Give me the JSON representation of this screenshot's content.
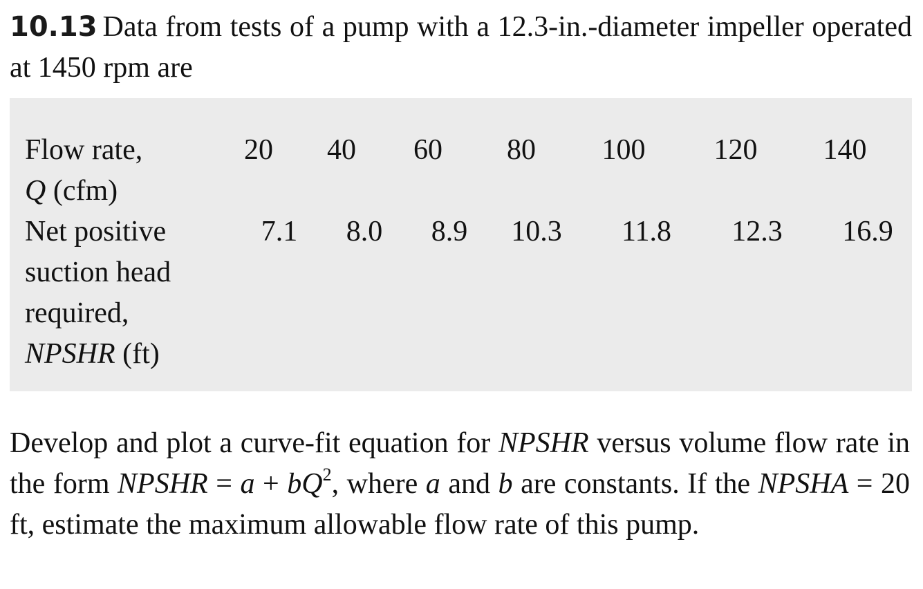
{
  "problem": {
    "number": "10.13",
    "intro": "Data from tests of a pump with a 12.3-in.-diameter impeller operated at 1450 rpm are"
  },
  "table": {
    "flow_rate": {
      "label_line1": "Flow rate,",
      "label_symbol": "Q",
      "label_unit": " (cfm)",
      "values": [
        "20",
        "40",
        "60",
        "80",
        "100",
        "120",
        "140"
      ]
    },
    "npshr": {
      "label_line1": "Net positive",
      "label_line2": "suction head",
      "label_line3": "required,",
      "label_symbol": "NPSHR",
      "label_unit": " (ft)",
      "values": [
        "7.1",
        "8.0",
        "8.9",
        "10.3",
        "11.8",
        "12.3",
        "16.9"
      ]
    }
  },
  "question": {
    "t1": "Develop and plot a curve-fit equation for ",
    "t2": "NPSHR",
    "t3": " versus volume flow rate in the form ",
    "t4": "NPSHR",
    "t5": " = ",
    "t6": "a",
    "t7": " + ",
    "t8": "bQ",
    "t9": "2",
    "t10": ", where ",
    "t11": "a",
    "t12": " and ",
    "t13": "b",
    "t14": " are constants. If the ",
    "t15": "NPSHA",
    "t16": " = 20 ft, estimate the maximum allowable flow rate of this pump."
  }
}
